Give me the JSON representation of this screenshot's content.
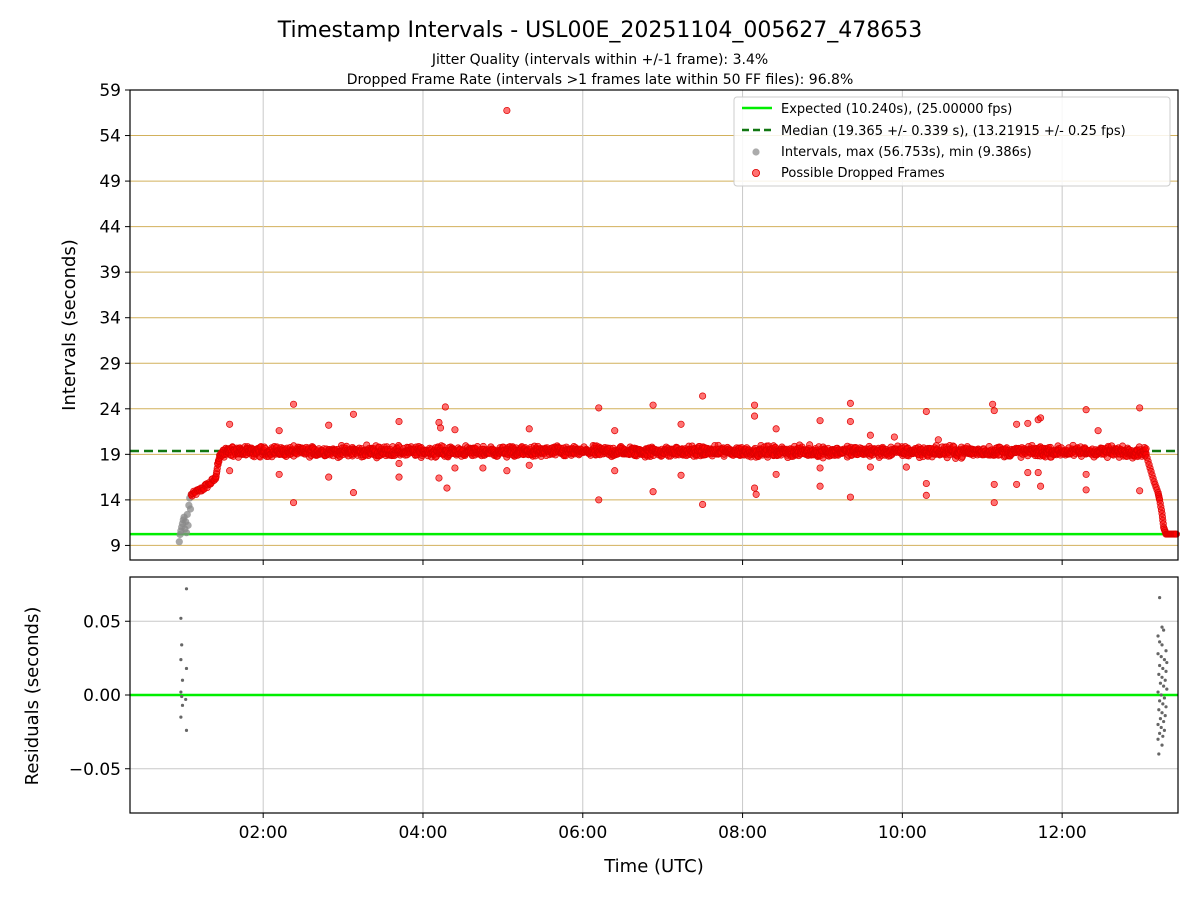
{
  "title": "Timestamp Intervals - USL00E_20251104_005627_478653",
  "subtitle_1": "Jitter Quality (intervals within +/-1 frame): 3.4%",
  "subtitle_2": "Dropped Frame Rate (intervals >1 frames late within 50 FF files): 96.8%",
  "colors": {
    "expected": "#00ee00",
    "median": "#117711",
    "intervals": "#888888",
    "dropped": "#ff0000",
    "hgrid_top": "#d2b15c",
    "grid": "#c8c8c8"
  },
  "chart_data": [
    {
      "type": "scatter",
      "xlabel": "",
      "ylabel": "Intervals (seconds)",
      "x_unit": "hours UTC",
      "xlim": [
        0.333,
        13.45
      ],
      "ylim": [
        7.4,
        59
      ],
      "yticks": [
        9,
        14,
        19,
        24,
        29,
        34,
        39,
        44,
        49,
        54,
        59
      ],
      "ytick_labels": [
        "9",
        "14",
        "19",
        "24",
        "29",
        "34",
        "39",
        "44",
        "49",
        "54",
        "59"
      ],
      "grid": true,
      "legend_position": "upper-right",
      "legend": [
        "Expected (10.240s), (25.00000 fps)",
        "Median (19.365 +/- 0.339 s), (13.21915 +/- 0.25 fps)",
        "Intervals, max (56.753s), min (9.386s)",
        "Possible Dropped Frames"
      ],
      "expected_interval": 10.24,
      "median_interval": 19.365,
      "series": [
        {
          "name": "Intervals, max (56.753s), min (9.386s)",
          "points": [
            [
              0.95,
              9.4
            ],
            [
              0.96,
              10.2
            ],
            [
              0.97,
              10.6
            ],
            [
              0.98,
              11.0
            ],
            [
              0.99,
              11.4
            ],
            [
              1.0,
              11.8
            ],
            [
              1.01,
              12.1
            ],
            [
              1.02,
              10.8
            ],
            [
              1.03,
              11.6
            ],
            [
              1.04,
              10.4
            ],
            [
              1.05,
              12.4
            ],
            [
              1.06,
              11.2
            ],
            [
              1.07,
              13.4
            ],
            [
              1.08,
              14.2
            ],
            [
              1.09,
              13.0
            ],
            [
              1.1,
              14.6
            ]
          ]
        },
        {
          "name": "Possible Dropped Frames",
          "ramp": [
            [
              1.1,
              14.5
            ],
            [
              1.2,
              15.0
            ],
            [
              1.3,
              15.6
            ],
            [
              1.4,
              16.3
            ],
            [
              1.45,
              18.6
            ],
            [
              1.5,
              19.3
            ]
          ],
          "plateau": {
            "x_start": 1.5,
            "x_end": 13.05,
            "y": 19.3
          },
          "tail": [
            [
              13.05,
              19.0
            ],
            [
              13.1,
              17.5
            ],
            [
              13.15,
              16.0
            ],
            [
              13.2,
              14.8
            ],
            [
              13.22,
              14.0
            ],
            [
              13.25,
              12.5
            ],
            [
              13.27,
              11.0
            ],
            [
              13.3,
              10.24
            ],
            [
              13.35,
              10.24
            ],
            [
              13.4,
              10.24
            ],
            [
              13.44,
              10.24
            ]
          ],
          "outliers": [
            [
              1.58,
              22.3
            ],
            [
              1.58,
              17.2
            ],
            [
              2.2,
              21.6
            ],
            [
              2.2,
              16.8
            ],
            [
              2.38,
              24.5
            ],
            [
              2.38,
              13.7
            ],
            [
              2.82,
              22.2
            ],
            [
              2.82,
              16.5
            ],
            [
              3.13,
              23.4
            ],
            [
              3.13,
              14.8
            ],
            [
              3.7,
              22.6
            ],
            [
              3.7,
              16.5
            ],
            [
              3.7,
              18.0
            ],
            [
              4.2,
              22.5
            ],
            [
              4.2,
              16.4
            ],
            [
              4.22,
              21.9
            ],
            [
              4.28,
              24.2
            ],
            [
              4.3,
              15.3
            ],
            [
              4.4,
              21.7
            ],
            [
              4.4,
              17.5
            ],
            [
              4.75,
              17.5
            ],
            [
              5.05,
              56.75
            ],
            [
              5.05,
              17.2
            ],
            [
              5.33,
              21.8
            ],
            [
              5.33,
              17.8
            ],
            [
              6.2,
              24.1
            ],
            [
              6.2,
              14.0
            ],
            [
              6.4,
              21.6
            ],
            [
              6.4,
              17.2
            ],
            [
              6.88,
              24.4
            ],
            [
              6.88,
              14.9
            ],
            [
              7.23,
              22.3
            ],
            [
              7.23,
              16.7
            ],
            [
              7.5,
              25.4
            ],
            [
              7.5,
              13.5
            ],
            [
              8.15,
              24.4
            ],
            [
              8.15,
              23.2
            ],
            [
              8.15,
              15.3
            ],
            [
              8.17,
              14.6
            ],
            [
              8.42,
              21.8
            ],
            [
              8.42,
              16.8
            ],
            [
              8.97,
              22.7
            ],
            [
              8.97,
              17.5
            ],
            [
              8.97,
              15.5
            ],
            [
              9.35,
              24.6
            ],
            [
              9.35,
              22.6
            ],
            [
              9.35,
              14.3
            ],
            [
              9.6,
              21.1
            ],
            [
              9.6,
              17.6
            ],
            [
              9.9,
              20.9
            ],
            [
              10.05,
              17.6
            ],
            [
              10.3,
              23.7
            ],
            [
              10.3,
              15.8
            ],
            [
              10.3,
              14.5
            ],
            [
              10.45,
              20.6
            ],
            [
              11.13,
              24.5
            ],
            [
              11.15,
              23.8
            ],
            [
              11.15,
              15.7
            ],
            [
              11.15,
              13.7
            ],
            [
              11.43,
              22.3
            ],
            [
              11.43,
              15.7
            ],
            [
              11.57,
              22.4
            ],
            [
              11.57,
              17.0
            ],
            [
              11.7,
              22.8
            ],
            [
              11.7,
              17.0
            ],
            [
              11.73,
              23.0
            ],
            [
              11.73,
              15.5
            ],
            [
              12.3,
              23.9
            ],
            [
              12.3,
              16.8
            ],
            [
              12.3,
              15.1
            ],
            [
              12.45,
              21.6
            ],
            [
              12.97,
              24.1
            ],
            [
              12.97,
              15.0
            ]
          ]
        }
      ]
    },
    {
      "type": "scatter",
      "xlabel": "Time (UTC)",
      "ylabel": "Residuals (seconds)",
      "x_unit": "hours UTC",
      "xlim": [
        0.333,
        13.45
      ],
      "ylim": [
        -0.08,
        0.08
      ],
      "yticks": [
        -0.05,
        0.0,
        0.05
      ],
      "ytick_labels": [
        "−0.05",
        "0.00",
        "0.05"
      ],
      "xticks": [
        2,
        4,
        6,
        8,
        10,
        12
      ],
      "xtick_labels": [
        "02:00",
        "04:00",
        "06:00",
        "08:00",
        "10:00",
        "12:00"
      ],
      "grid": true,
      "baseline": 0.0,
      "series": [
        {
          "name": "Residuals",
          "points": [
            [
              0.97,
              0.052
            ],
            [
              0.98,
              0.034
            ],
            [
              0.97,
              0.024
            ],
            [
              0.99,
              0.01
            ],
            [
              0.97,
              0.002
            ],
            [
              0.98,
              -0.001
            ],
            [
              0.99,
              -0.007
            ],
            [
              0.97,
              -0.015
            ],
            [
              1.04,
              0.072
            ],
            [
              1.04,
              0.018
            ],
            [
              1.03,
              -0.003
            ],
            [
              1.04,
              -0.024
            ],
            [
              13.22,
              0.066
            ],
            [
              13.25,
              0.046
            ],
            [
              13.27,
              0.044
            ],
            [
              13.2,
              0.04
            ],
            [
              13.22,
              0.036
            ],
            [
              13.25,
              0.034
            ],
            [
              13.3,
              0.03
            ],
            [
              13.2,
              0.028
            ],
            [
              13.24,
              0.026
            ],
            [
              13.28,
              0.024
            ],
            [
              13.31,
              0.022
            ],
            [
              13.22,
              0.02
            ],
            [
              13.26,
              0.018
            ],
            [
              13.3,
              0.016
            ],
            [
              13.21,
              0.014
            ],
            [
              13.25,
              0.012
            ],
            [
              13.29,
              0.01
            ],
            [
              13.23,
              0.008
            ],
            [
              13.27,
              0.006
            ],
            [
              13.31,
              0.004
            ],
            [
              13.2,
              0.002
            ],
            [
              13.24,
              0.0
            ],
            [
              13.28,
              -0.002
            ],
            [
              13.22,
              -0.004
            ],
            [
              13.26,
              -0.006
            ],
            [
              13.3,
              -0.008
            ],
            [
              13.21,
              -0.01
            ],
            [
              13.25,
              -0.012
            ],
            [
              13.29,
              -0.014
            ],
            [
              13.23,
              -0.016
            ],
            [
              13.27,
              -0.018
            ],
            [
              13.2,
              -0.02
            ],
            [
              13.24,
              -0.022
            ],
            [
              13.28,
              -0.024
            ],
            [
              13.22,
              -0.026
            ],
            [
              13.26,
              -0.028
            ],
            [
              13.2,
              -0.03
            ],
            [
              13.25,
              -0.034
            ],
            [
              13.21,
              -0.04
            ]
          ]
        }
      ]
    }
  ]
}
